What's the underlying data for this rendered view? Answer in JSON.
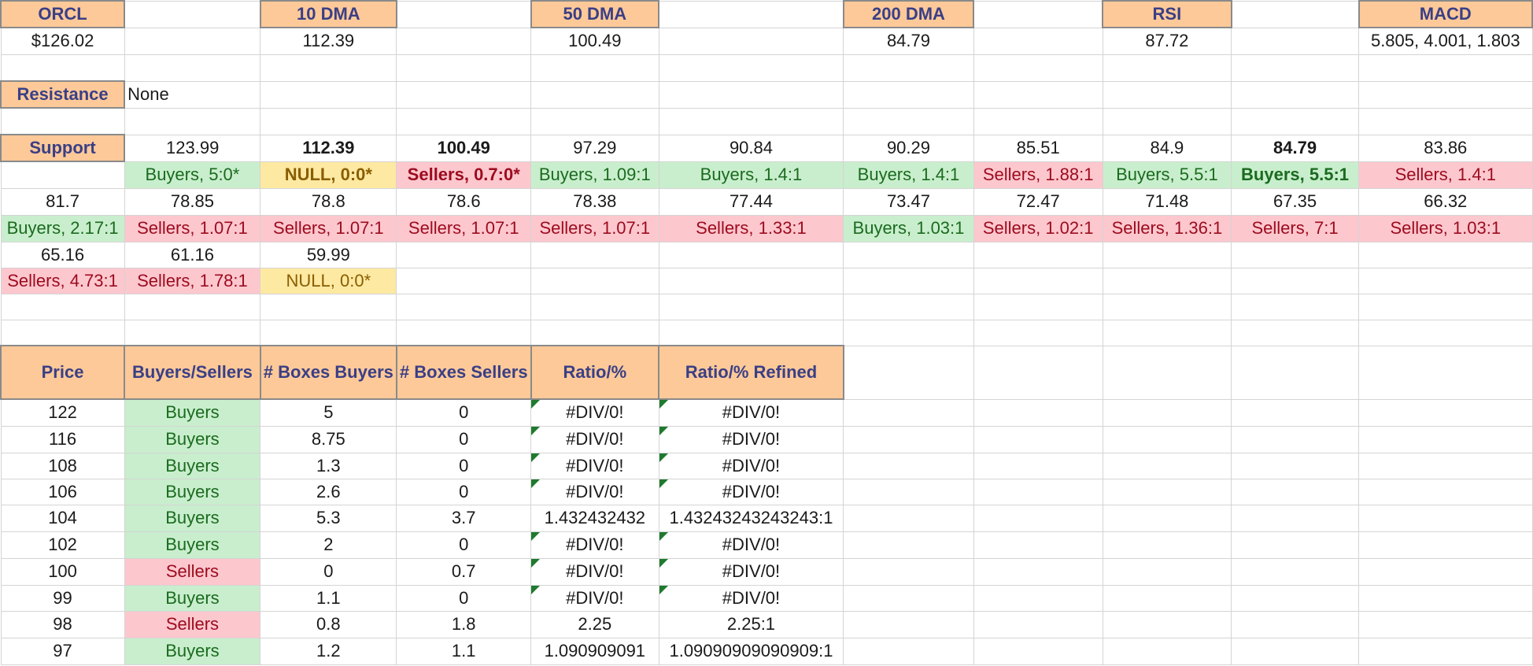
{
  "header": {
    "orcl": "ORCL",
    "dma10": "10 DMA",
    "dma50": "50 DMA",
    "dma200": "200 DMA",
    "rsi": "RSI",
    "macd": "MACD"
  },
  "values": {
    "price": "$126.02",
    "dma10": "112.39",
    "dma50": "100.49",
    "dma200": "84.79",
    "rsi": "87.72",
    "macd": "5.805, 4.001, 1.803"
  },
  "resistance": {
    "label": "Resistance",
    "value": "None"
  },
  "support": {
    "label": "Support",
    "rows": [
      {
        "levels": [
          "123.99",
          "112.39",
          "100.49",
          "97.29",
          "90.84",
          "90.29",
          "85.51",
          "84.9",
          "84.79",
          "83.86"
        ],
        "ratios": [
          "Buyers, 5:0*",
          "NULL, 0:0*",
          "Sellers, 0.7:0*",
          "Buyers, 1.09:1",
          "Buyers, 1.4:1",
          "Buyers, 1.4:1",
          "Sellers, 1.88:1",
          "Buyers, 5.5:1",
          "Buyers, 5.5:1",
          "Sellers, 1.4:1"
        ]
      },
      {
        "levels": [
          "81.7",
          "78.85",
          "78.8",
          "78.6",
          "78.38",
          "77.44",
          "73.47",
          "72.47",
          "71.48",
          "67.35",
          "66.32"
        ],
        "ratios": [
          "Buyers, 2.17:1",
          "Sellers, 1.07:1",
          "Sellers, 1.07:1",
          "Sellers, 1.07:1",
          "Sellers, 1.07:1",
          "Sellers, 1.33:1",
          "Buyers, 1.03:1",
          "Sellers, 1.02:1",
          "Sellers, 1.36:1",
          "Sellers, 7:1",
          "Sellers, 1.03:1"
        ]
      },
      {
        "levels": [
          "65.16",
          "61.16",
          "59.99"
        ],
        "ratios": [
          "Sellers, 4.73:1",
          "Sellers, 1.78:1",
          "NULL, 0:0*"
        ]
      }
    ]
  },
  "table": {
    "headers": [
      "Price",
      "Buyers/Sellers",
      "# Boxes Buyers",
      "# Boxes Sellers",
      "Ratio/%",
      "Ratio/% Refined"
    ],
    "rows": [
      [
        "122",
        "Buyers",
        "5",
        "0",
        "#DIV/0!",
        "#DIV/0!"
      ],
      [
        "116",
        "Buyers",
        "8.75",
        "0",
        "#DIV/0!",
        "#DIV/0!"
      ],
      [
        "108",
        "Buyers",
        "1.3",
        "0",
        "#DIV/0!",
        "#DIV/0!"
      ],
      [
        "106",
        "Buyers",
        "2.6",
        "0",
        "#DIV/0!",
        "#DIV/0!"
      ],
      [
        "104",
        "Buyers",
        "5.3",
        "3.7",
        "1.432432432",
        "1.43243243243243:1"
      ],
      [
        "102",
        "Buyers",
        "2",
        "0",
        "#DIV/0!",
        "#DIV/0!"
      ],
      [
        "100",
        "Sellers",
        "0",
        "0.7",
        "#DIV/0!",
        "#DIV/0!"
      ],
      [
        "99",
        "Buyers",
        "1.1",
        "0",
        "#DIV/0!",
        "#DIV/0!"
      ],
      [
        "98",
        "Sellers",
        "0.8",
        "1.8",
        "2.25",
        "2.25:1"
      ],
      [
        "97",
        "Buyers",
        "1.2",
        "1.1",
        "1.090909091",
        "1.09090909090909:1"
      ]
    ]
  },
  "colors": {
    "header_fill": "#fdc998",
    "header_text": "#3a3f86",
    "buyers_fill": "#c9eecd",
    "buyers_text": "#1a6b1f",
    "sellers_fill": "#fdc7ce",
    "sellers_text": "#9c0b1e",
    "null_fill": "#fde9a2",
    "null_text": "#8a5d00",
    "error_flag": "#1f7a2e"
  }
}
